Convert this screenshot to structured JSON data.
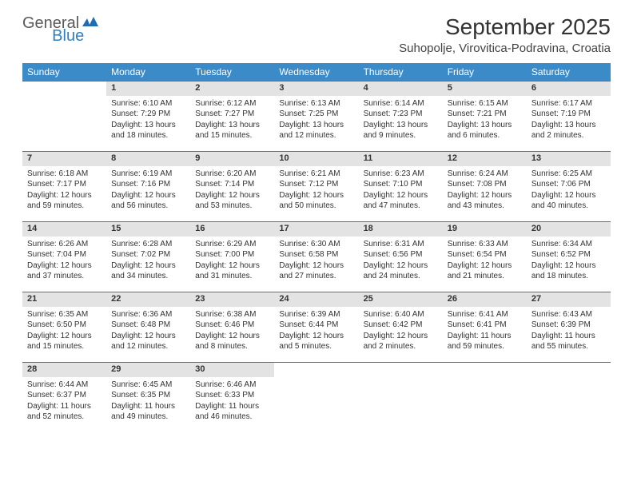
{
  "logo": {
    "text1": "General",
    "text2": "Blue"
  },
  "title": "September 2025",
  "location": "Suhopolje, Virovitica-Podravina, Croatia",
  "colors": {
    "header_bg": "#3b8bc9",
    "header_text": "#ffffff",
    "daynum_bg": "#e3e3e3",
    "border": "#3b7aa8",
    "logo_gray": "#5a5a5a",
    "logo_blue": "#2f7fc2"
  },
  "dayNames": [
    "Sunday",
    "Monday",
    "Tuesday",
    "Wednesday",
    "Thursday",
    "Friday",
    "Saturday"
  ],
  "weeks": [
    {
      "nums": [
        "",
        "1",
        "2",
        "3",
        "4",
        "5",
        "6"
      ],
      "cells": [
        "",
        "Sunrise: 6:10 AM\nSunset: 7:29 PM\nDaylight: 13 hours and 18 minutes.",
        "Sunrise: 6:12 AM\nSunset: 7:27 PM\nDaylight: 13 hours and 15 minutes.",
        "Sunrise: 6:13 AM\nSunset: 7:25 PM\nDaylight: 13 hours and 12 minutes.",
        "Sunrise: 6:14 AM\nSunset: 7:23 PM\nDaylight: 13 hours and 9 minutes.",
        "Sunrise: 6:15 AM\nSunset: 7:21 PM\nDaylight: 13 hours and 6 minutes.",
        "Sunrise: 6:17 AM\nSunset: 7:19 PM\nDaylight: 13 hours and 2 minutes."
      ]
    },
    {
      "nums": [
        "7",
        "8",
        "9",
        "10",
        "11",
        "12",
        "13"
      ],
      "cells": [
        "Sunrise: 6:18 AM\nSunset: 7:17 PM\nDaylight: 12 hours and 59 minutes.",
        "Sunrise: 6:19 AM\nSunset: 7:16 PM\nDaylight: 12 hours and 56 minutes.",
        "Sunrise: 6:20 AM\nSunset: 7:14 PM\nDaylight: 12 hours and 53 minutes.",
        "Sunrise: 6:21 AM\nSunset: 7:12 PM\nDaylight: 12 hours and 50 minutes.",
        "Sunrise: 6:23 AM\nSunset: 7:10 PM\nDaylight: 12 hours and 47 minutes.",
        "Sunrise: 6:24 AM\nSunset: 7:08 PM\nDaylight: 12 hours and 43 minutes.",
        "Sunrise: 6:25 AM\nSunset: 7:06 PM\nDaylight: 12 hours and 40 minutes."
      ]
    },
    {
      "nums": [
        "14",
        "15",
        "16",
        "17",
        "18",
        "19",
        "20"
      ],
      "cells": [
        "Sunrise: 6:26 AM\nSunset: 7:04 PM\nDaylight: 12 hours and 37 minutes.",
        "Sunrise: 6:28 AM\nSunset: 7:02 PM\nDaylight: 12 hours and 34 minutes.",
        "Sunrise: 6:29 AM\nSunset: 7:00 PM\nDaylight: 12 hours and 31 minutes.",
        "Sunrise: 6:30 AM\nSunset: 6:58 PM\nDaylight: 12 hours and 27 minutes.",
        "Sunrise: 6:31 AM\nSunset: 6:56 PM\nDaylight: 12 hours and 24 minutes.",
        "Sunrise: 6:33 AM\nSunset: 6:54 PM\nDaylight: 12 hours and 21 minutes.",
        "Sunrise: 6:34 AM\nSunset: 6:52 PM\nDaylight: 12 hours and 18 minutes."
      ]
    },
    {
      "nums": [
        "21",
        "22",
        "23",
        "24",
        "25",
        "26",
        "27"
      ],
      "cells": [
        "Sunrise: 6:35 AM\nSunset: 6:50 PM\nDaylight: 12 hours and 15 minutes.",
        "Sunrise: 6:36 AM\nSunset: 6:48 PM\nDaylight: 12 hours and 12 minutes.",
        "Sunrise: 6:38 AM\nSunset: 6:46 PM\nDaylight: 12 hours and 8 minutes.",
        "Sunrise: 6:39 AM\nSunset: 6:44 PM\nDaylight: 12 hours and 5 minutes.",
        "Sunrise: 6:40 AM\nSunset: 6:42 PM\nDaylight: 12 hours and 2 minutes.",
        "Sunrise: 6:41 AM\nSunset: 6:41 PM\nDaylight: 11 hours and 59 minutes.",
        "Sunrise: 6:43 AM\nSunset: 6:39 PM\nDaylight: 11 hours and 55 minutes."
      ]
    },
    {
      "nums": [
        "28",
        "29",
        "30",
        "",
        "",
        "",
        ""
      ],
      "cells": [
        "Sunrise: 6:44 AM\nSunset: 6:37 PM\nDaylight: 11 hours and 52 minutes.",
        "Sunrise: 6:45 AM\nSunset: 6:35 PM\nDaylight: 11 hours and 49 minutes.",
        "Sunrise: 6:46 AM\nSunset: 6:33 PM\nDaylight: 11 hours and 46 minutes.",
        "",
        "",
        "",
        ""
      ]
    }
  ]
}
